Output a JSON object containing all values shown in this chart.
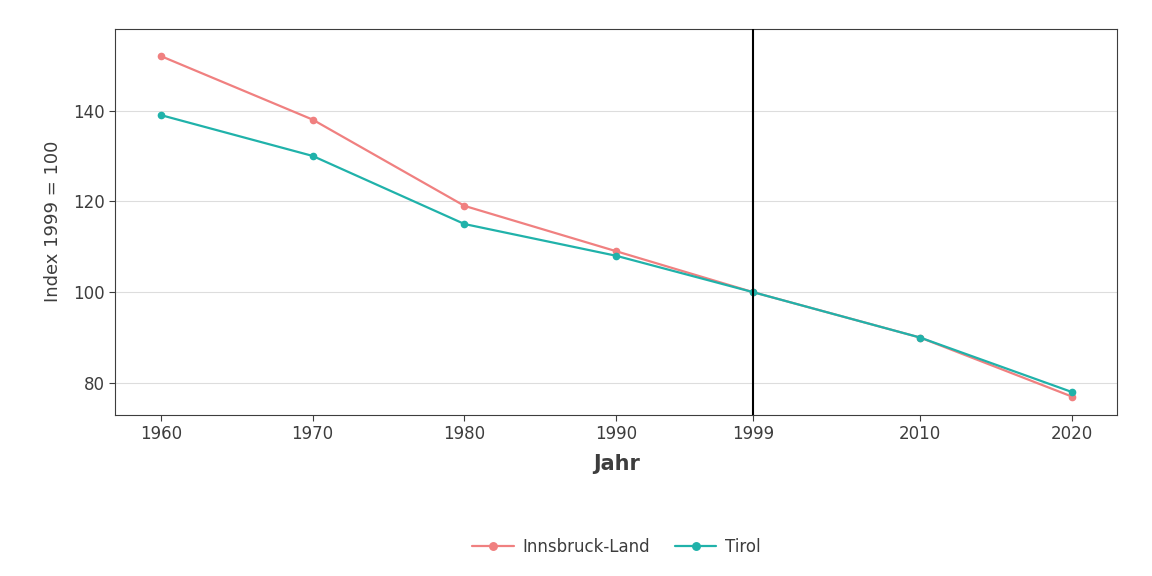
{
  "years": [
    1960,
    1970,
    1980,
    1990,
    1999,
    2010,
    2020
  ],
  "innsbruck_land": [
    152,
    138,
    119,
    109,
    100,
    90,
    77
  ],
  "tirol": [
    139,
    130,
    115,
    108,
    100,
    90,
    78
  ],
  "innsbruck_color": "#F08080",
  "tirol_color": "#20B2AA",
  "vline_x": 1999,
  "xlabel": "Jahr",
  "ylabel": "Index 1999 = 100",
  "ylim": [
    73,
    158
  ],
  "yticks": [
    80,
    100,
    120,
    140
  ],
  "xticks": [
    1960,
    1970,
    1980,
    1990,
    1999,
    2010,
    2020
  ],
  "legend_label_1": "Innsbruck-Land",
  "legend_label_2": "Tirol",
  "background_color": "#FFFFFF",
  "panel_background": "#FFFFFF",
  "grid_color": "#DDDDDD",
  "text_color": "#3D3D3D",
  "spine_color": "#3D3D3D",
  "linewidth": 1.6,
  "markersize": 4.5,
  "xlabel_fontsize": 15,
  "ylabel_fontsize": 13,
  "tick_fontsize": 12,
  "legend_fontsize": 12
}
